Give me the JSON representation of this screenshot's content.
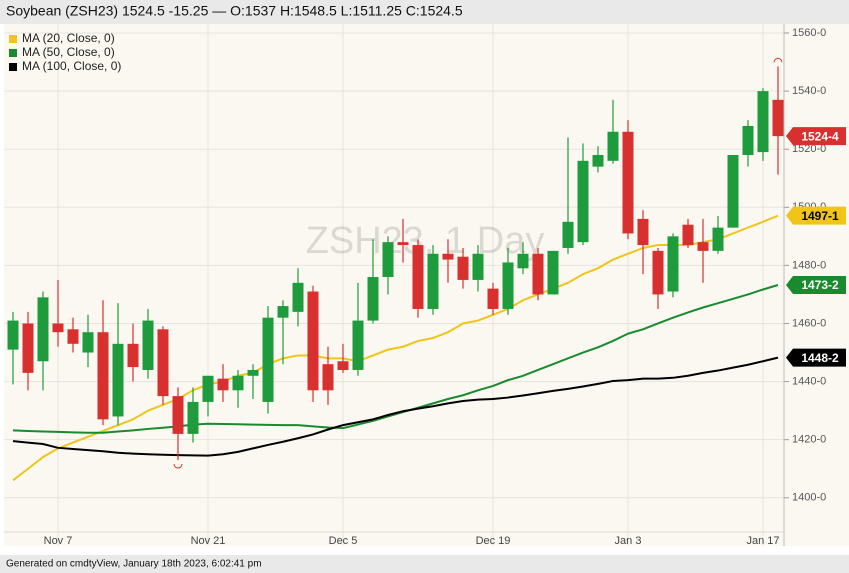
{
  "chart_data": {
    "type": "candlestick",
    "title": "Soybean (ZSH23) 1524.5 -15.25 — O:1537 H:1548.5 L:1511.25 C:1524.5",
    "watermark": "ZSH23, 1 Day",
    "footer": "Generated on cmdtyView, January 18th 2023, 6:02:41 pm",
    "categories": [
      null,
      null,
      null,
      "Nov 7",
      null,
      null,
      null,
      null,
      null,
      null,
      null,
      null,
      null,
      "Nov 21",
      null,
      null,
      null,
      null,
      null,
      null,
      null,
      null,
      "Dec 5",
      null,
      null,
      null,
      null,
      null,
      null,
      null,
      null,
      null,
      "Dec 19",
      null,
      null,
      null,
      null,
      null,
      null,
      null,
      null,
      "Jan 3",
      null,
      null,
      null,
      null,
      null,
      null,
      null,
      null,
      "Jan 17",
      null
    ],
    "open": [
      1451,
      1460,
      1447,
      1460,
      1458,
      1450,
      1457,
      1428,
      1453,
      1444,
      1458,
      1435,
      1422,
      1433,
      1441,
      1437,
      1442,
      1433,
      1462,
      1464,
      1471,
      1446,
      1447,
      1444,
      1461,
      1476,
      1488,
      1487,
      1465,
      1484,
      1483,
      1475,
      1472,
      1465,
      1479,
      1484,
      1470,
      1486,
      1488,
      1514,
      1516,
      1526,
      1496,
      1485,
      1471,
      1494,
      1488,
      1485,
      1493,
      1518,
      1519,
      1537
    ],
    "high": [
      1464,
      1464,
      1471,
      1475,
      1462,
      1463,
      1468,
      1467,
      1460,
      1465,
      1459,
      1438,
      1438,
      1441,
      1446,
      1444,
      1446,
      1466,
      1468,
      1479,
      1473,
      1452,
      1453,
      1474,
      1489,
      1490,
      1496,
      1489,
      1487,
      1489,
      1486,
      1487,
      1474,
      1486,
      1488,
      1486,
      1485,
      1524,
      1522,
      1521,
      1537,
      1530,
      1499,
      1486,
      1491,
      1496,
      1496,
      1497,
      1518,
      1530,
      1541,
      1548.5
    ],
    "low": [
      1439,
      1437,
      1437,
      1452,
      1450,
      1445,
      1425,
      1425,
      1440,
      1441,
      1432,
      1413,
      1419,
      1428,
      1433,
      1431,
      1434,
      1429,
      1446,
      1459,
      1433,
      1432,
      1443,
      1442,
      1460,
      1470,
      1481,
      1462,
      1463,
      1474,
      1472,
      1471,
      1463,
      1463,
      1477,
      1468,
      1470,
      1484,
      1487,
      1512,
      1515,
      1489,
      1477,
      1465,
      1469,
      1486,
      1474,
      1484,
      1493,
      1514,
      1516,
      1511.25
    ],
    "close": [
      1461,
      1443,
      1469,
      1457,
      1453,
      1457,
      1427,
      1453,
      1445,
      1461,
      1435,
      1422,
      1433,
      1442,
      1437,
      1442,
      1444,
      1462,
      1466,
      1474,
      1437,
      1437,
      1444,
      1461,
      1476,
      1488,
      1487,
      1465,
      1484,
      1482,
      1475,
      1484,
      1465,
      1481,
      1484,
      1470,
      1485,
      1495,
      1516,
      1518,
      1526,
      1491,
      1487,
      1470,
      1490,
      1487,
      1485,
      1493,
      1518,
      1528,
      1540,
      1524.5
    ],
    "up_color": "#1e9b3c",
    "down_color": "#d8302f",
    "series": [
      {
        "name": "MA (20, Close, 0)",
        "color": "#f0c419",
        "values": [
          1406,
          1410,
          1414,
          1417,
          1419,
          1421,
          1423,
          1425,
          1427,
          1430,
          1432,
          1434,
          1437,
          1439,
          1440,
          1442,
          1443,
          1446,
          1448,
          1449,
          1449,
          1448,
          1448,
          1447,
          1449,
          1451,
          1452,
          1454,
          1455,
          1457,
          1460,
          1461,
          1463,
          1465,
          1468,
          1470,
          1472,
          1474,
          1477,
          1479,
          1482,
          1484,
          1486,
          1487,
          1487,
          1487,
          1488,
          1489,
          1491,
          1493,
          1495,
          1497.125
        ]
      },
      {
        "name": "MA (50, Close, 0)",
        "color": "#1a8a2e",
        "values": [
          1423.2,
          1423,
          1422.8,
          1422.7,
          1422.5,
          1422.4,
          1422.4,
          1422.8,
          1423.2,
          1423.7,
          1424.1,
          1424.6,
          1425.2,
          1425.5,
          1425.4,
          1425.3,
          1425.2,
          1425.1,
          1425,
          1425,
          1424.6,
          1424.2,
          1424,
          1425.2,
          1426.5,
          1428,
          1429.5,
          1431,
          1432.5,
          1434,
          1435.3,
          1437,
          1438.5,
          1440.5,
          1442,
          1444,
          1446,
          1448,
          1450,
          1451.8,
          1454,
          1456.5,
          1458,
          1460,
          1462,
          1463.8,
          1465.5,
          1467,
          1468.5,
          1470,
          1471.7,
          1473.25
        ]
      },
      {
        "name": "MA (100, Close, 0)",
        "color": "#000000",
        "values": [
          1419.5,
          1419,
          1418.5,
          1417.2,
          1416.8,
          1416.4,
          1416,
          1415.5,
          1415.2,
          1415,
          1414.8,
          1414.7,
          1414.6,
          1414.5,
          1415,
          1415.8,
          1417,
          1418.2,
          1419.3,
          1420.5,
          1421.8,
          1423.5,
          1425,
          1426,
          1427,
          1428.5,
          1429.8,
          1430.7,
          1431.5,
          1432.5,
          1433.3,
          1433.8,
          1434,
          1434.5,
          1435.2,
          1436,
          1436.8,
          1437.5,
          1438.3,
          1439.2,
          1440.2,
          1440.5,
          1441,
          1441,
          1441.3,
          1442,
          1443,
          1443.8,
          1444.8,
          1445.8,
          1447,
          1448.25
        ]
      }
    ],
    "price_labels": [
      {
        "value": 1524.5,
        "label": "1524-4",
        "color": "#d8302f"
      },
      {
        "value": 1497.125,
        "label": "1497-1",
        "color": "#f0c419"
      },
      {
        "value": 1473.25,
        "label": "1473-2",
        "color": "#1a8a2e"
      },
      {
        "value": 1448.25,
        "label": "1448-2",
        "color": "#000000"
      }
    ],
    "ylim": [
      1383.4,
      1563.1
    ],
    "yticks": [
      {
        "value": 1400,
        "label": "1400-0"
      },
      {
        "value": 1420,
        "label": "1420-0"
      },
      {
        "value": 1440,
        "label": "1440-0"
      },
      {
        "value": 1460,
        "label": "1460-0"
      },
      {
        "value": 1480,
        "label": "1480-0"
      },
      {
        "value": 1500,
        "label": "1500-0"
      },
      {
        "value": 1520,
        "label": "1520-0"
      },
      {
        "value": 1540,
        "label": "1540-0"
      },
      {
        "value": 1560,
        "label": "1560-0"
      }
    ],
    "grid": true
  }
}
